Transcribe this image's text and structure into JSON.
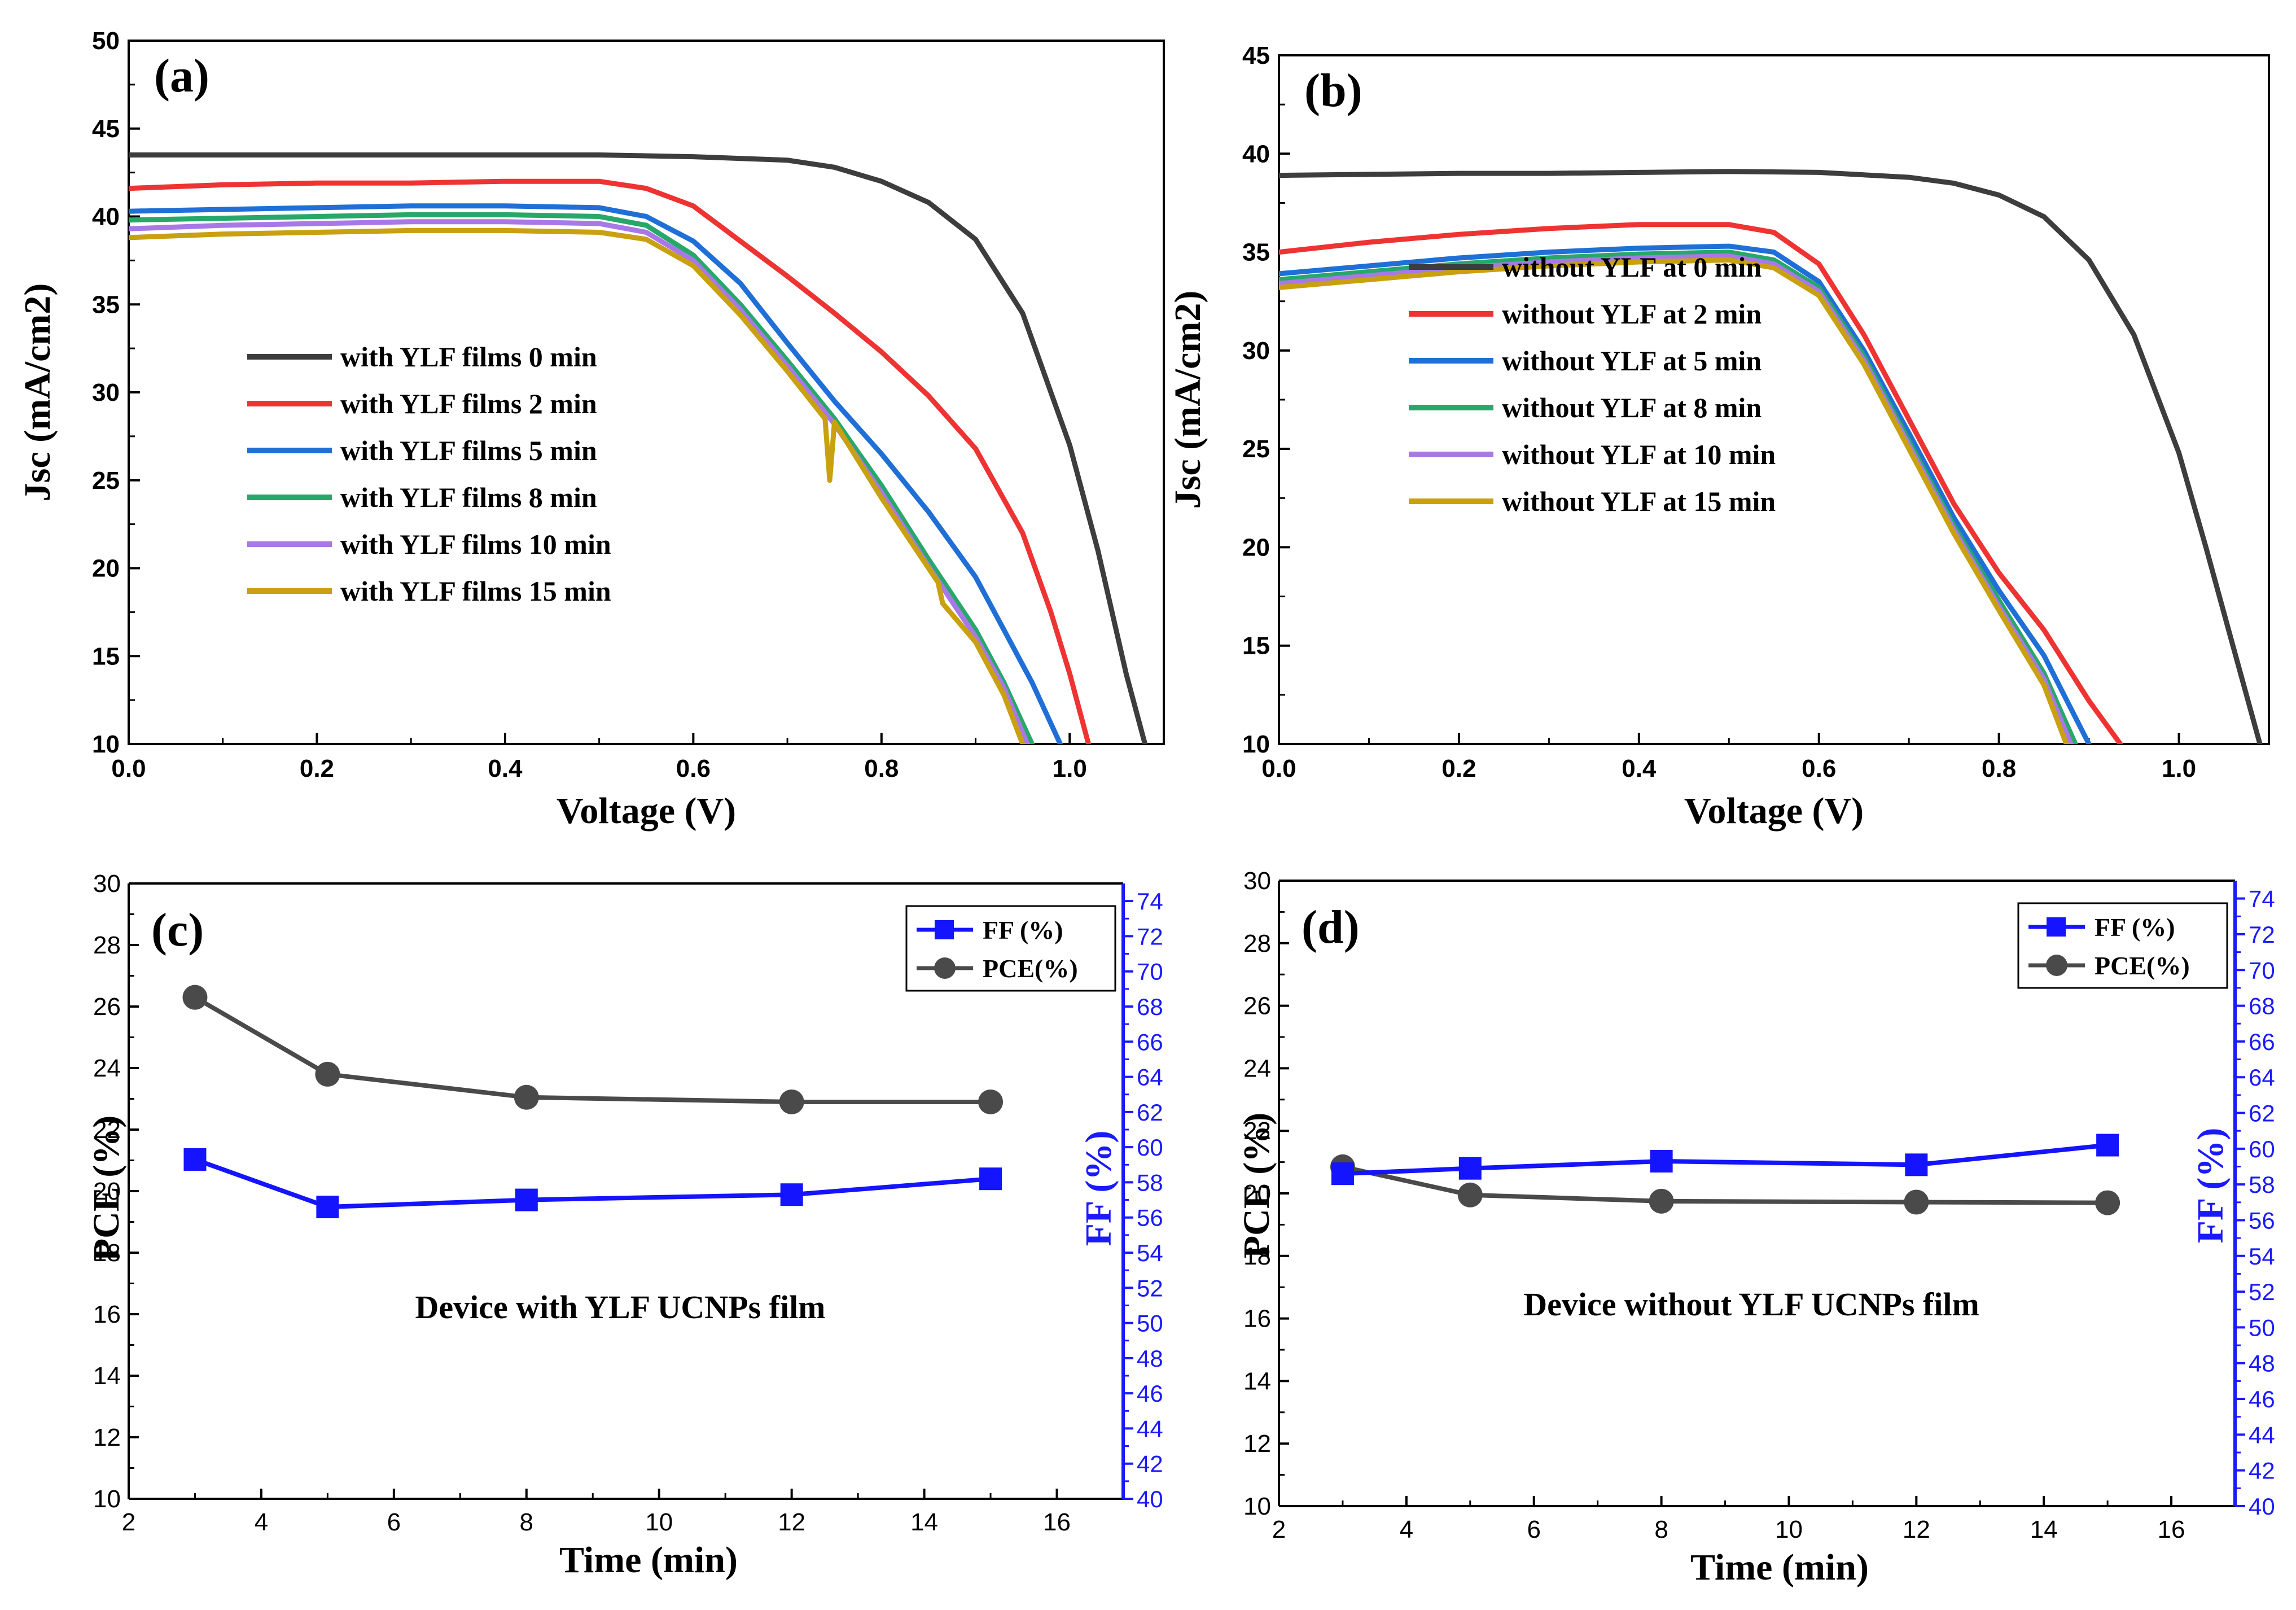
{
  "chart_data": [
    {
      "panel": "(a)",
      "type": "line",
      "title": "",
      "xlabel": "Voltage (V)",
      "ylabel": "Jsc (mA/cm2)",
      "xlim": [
        0.0,
        1.1
      ],
      "ylim": [
        10,
        50
      ],
      "xticks": [
        "0.0",
        "0.2",
        "0.4",
        "0.6",
        "0.8",
        "1.0"
      ],
      "yticks": [
        "10",
        "15",
        "20",
        "25",
        "30",
        "35",
        "40",
        "45",
        "50"
      ],
      "legend_position": "center-left",
      "series": [
        {
          "name": "with YLF films 0 min",
          "color": "#3d3d3d",
          "x": [
            0,
            0.1,
            0.2,
            0.3,
            0.4,
            0.5,
            0.6,
            0.7,
            0.75,
            0.8,
            0.85,
            0.9,
            0.95,
            1.0,
            1.03,
            1.06,
            1.08
          ],
          "y": [
            43.5,
            43.5,
            43.5,
            43.5,
            43.5,
            43.5,
            43.4,
            43.2,
            42.8,
            42.0,
            40.8,
            38.7,
            34.5,
            27.0,
            21.0,
            14.0,
            10.0
          ]
        },
        {
          "name": "with YLF films 2 min",
          "color": "#ee3333",
          "x": [
            0,
            0.1,
            0.2,
            0.3,
            0.4,
            0.5,
            0.55,
            0.6,
            0.65,
            0.7,
            0.75,
            0.8,
            0.85,
            0.9,
            0.95,
            0.98,
            1.0,
            1.02
          ],
          "y": [
            41.6,
            41.8,
            41.9,
            41.9,
            42.0,
            42.0,
            41.6,
            40.6,
            38.6,
            36.6,
            34.5,
            32.3,
            29.8,
            26.8,
            22.0,
            17.5,
            14.0,
            10.0
          ]
        },
        {
          "name": "with YLF films 5 min",
          "color": "#1f6fd6",
          "x": [
            0,
            0.1,
            0.2,
            0.3,
            0.4,
            0.5,
            0.55,
            0.6,
            0.65,
            0.7,
            0.75,
            0.8,
            0.85,
            0.9,
            0.93,
            0.96,
            0.99
          ],
          "y": [
            40.3,
            40.4,
            40.5,
            40.6,
            40.6,
            40.5,
            40.0,
            38.6,
            36.2,
            32.8,
            29.5,
            26.5,
            23.2,
            19.5,
            16.5,
            13.5,
            10.0
          ]
        },
        {
          "name": "with YLF films 8 min",
          "color": "#27a86a",
          "x": [
            0,
            0.1,
            0.2,
            0.3,
            0.4,
            0.5,
            0.55,
            0.6,
            0.65,
            0.7,
            0.75,
            0.8,
            0.85,
            0.9,
            0.93,
            0.96
          ],
          "y": [
            39.8,
            39.9,
            40.0,
            40.1,
            40.1,
            40.0,
            39.5,
            37.8,
            35.0,
            31.8,
            28.5,
            24.7,
            20.5,
            16.5,
            13.5,
            10.0
          ]
        },
        {
          "name": "with YLF films 10 min",
          "color": "#a879e6",
          "x": [
            0,
            0.1,
            0.2,
            0.3,
            0.4,
            0.5,
            0.55,
            0.6,
            0.65,
            0.7,
            0.75,
            0.8,
            0.85,
            0.9,
            0.93,
            0.955
          ],
          "y": [
            39.3,
            39.5,
            39.6,
            39.7,
            39.7,
            39.6,
            39.1,
            37.5,
            34.7,
            31.5,
            28.2,
            24.3,
            20.1,
            16.1,
            13.2,
            10.0
          ]
        },
        {
          "name": "with YLF films 15 min",
          "color": "#c9a010",
          "x": [
            0,
            0.1,
            0.2,
            0.3,
            0.4,
            0.5,
            0.55,
            0.6,
            0.65,
            0.7,
            0.74,
            0.745,
            0.75,
            0.8,
            0.85,
            0.86,
            0.865,
            0.9,
            0.93,
            0.95
          ],
          "y": [
            38.8,
            39.0,
            39.1,
            39.2,
            39.2,
            39.1,
            38.7,
            37.2,
            34.4,
            31.2,
            28.5,
            25.0,
            28.3,
            24.0,
            20.0,
            19.2,
            18.0,
            15.8,
            12.8,
            10.0
          ]
        }
      ]
    },
    {
      "panel": "(b)",
      "type": "line",
      "title": "",
      "xlabel": "Voltage (V)",
      "ylabel": "Jsc (mA/cm2)",
      "xlim": [
        0.0,
        1.1
      ],
      "ylim": [
        10,
        45
      ],
      "xticks": [
        "0.0",
        "0.2",
        "0.4",
        "0.6",
        "0.8",
        "1.0"
      ],
      "yticks": [
        "10",
        "15",
        "20",
        "25",
        "30",
        "35",
        "40",
        "45"
      ],
      "legend_position": "center-left",
      "series": [
        {
          "name": "without YLF at 0 min",
          "color": "#3d3d3d",
          "x": [
            0,
            0.1,
            0.2,
            0.3,
            0.4,
            0.5,
            0.6,
            0.7,
            0.75,
            0.8,
            0.85,
            0.9,
            0.95,
            1.0,
            1.03,
            1.06,
            1.09
          ],
          "y": [
            38.9,
            38.95,
            39.0,
            39.0,
            39.05,
            39.1,
            39.05,
            38.8,
            38.5,
            37.9,
            36.8,
            34.6,
            30.8,
            24.8,
            20.0,
            15.0,
            10.0
          ]
        },
        {
          "name": "without YLF at 2 min",
          "color": "#ee3333",
          "x": [
            0,
            0.1,
            0.2,
            0.3,
            0.4,
            0.5,
            0.55,
            0.6,
            0.65,
            0.7,
            0.75,
            0.8,
            0.85,
            0.9,
            0.935
          ],
          "y": [
            35.0,
            35.5,
            35.9,
            36.2,
            36.4,
            36.4,
            36.0,
            34.4,
            30.8,
            26.5,
            22.2,
            18.7,
            15.8,
            12.2,
            10.0
          ]
        },
        {
          "name": "without YLF at 5 min",
          "color": "#1f6fd6",
          "x": [
            0,
            0.1,
            0.2,
            0.3,
            0.4,
            0.5,
            0.55,
            0.6,
            0.65,
            0.7,
            0.75,
            0.8,
            0.85,
            0.9
          ],
          "y": [
            33.9,
            34.3,
            34.7,
            35.0,
            35.2,
            35.3,
            35.0,
            33.5,
            30.0,
            25.8,
            21.5,
            17.8,
            14.5,
            10.0
          ]
        },
        {
          "name": "without YLF at 8 min",
          "color": "#27a86a",
          "x": [
            0,
            0.1,
            0.2,
            0.3,
            0.4,
            0.5,
            0.55,
            0.6,
            0.65,
            0.7,
            0.75,
            0.8,
            0.85,
            0.885
          ],
          "y": [
            33.6,
            34.0,
            34.4,
            34.7,
            34.9,
            35.0,
            34.6,
            33.2,
            29.7,
            25.4,
            21.1,
            17.3,
            13.6,
            10.0
          ]
        },
        {
          "name": "without YLF at 10 min",
          "color": "#a879e6",
          "x": [
            0,
            0.1,
            0.2,
            0.3,
            0.4,
            0.5,
            0.55,
            0.6,
            0.65,
            0.7,
            0.75,
            0.8,
            0.85,
            0.88
          ],
          "y": [
            33.4,
            33.8,
            34.2,
            34.5,
            34.7,
            34.8,
            34.4,
            33.0,
            29.5,
            25.2,
            20.9,
            17.0,
            13.3,
            10.0
          ]
        },
        {
          "name": "without YLF at 15 min",
          "color": "#c9a010",
          "x": [
            0,
            0.1,
            0.2,
            0.3,
            0.4,
            0.5,
            0.55,
            0.6,
            0.65,
            0.7,
            0.75,
            0.8,
            0.85,
            0.875
          ],
          "y": [
            33.2,
            33.6,
            34.0,
            34.3,
            34.5,
            34.6,
            34.2,
            32.8,
            29.3,
            25.0,
            20.7,
            16.8,
            13.0,
            10.0
          ]
        }
      ]
    },
    {
      "panel": "(c)",
      "type": "line",
      "title": "",
      "annotation": "Device with YLF UCNPs film",
      "xlabel": "Time (min)",
      "ylabel": "PCE (%)",
      "y2label": "FF (%)",
      "xlim": [
        2,
        17
      ],
      "ylim": [
        10,
        30
      ],
      "y2lim": [
        40,
        75
      ],
      "xticks": [
        "2",
        "4",
        "6",
        "8",
        "10",
        "12",
        "14",
        "16"
      ],
      "yticks": [
        "10",
        "12",
        "14",
        "16",
        "18",
        "20",
        "22",
        "24",
        "26",
        "28",
        "30"
      ],
      "y2ticks": [
        "40",
        "42",
        "44",
        "46",
        "48",
        "50",
        "52",
        "54",
        "56",
        "58",
        "60",
        "62",
        "64",
        "66",
        "68",
        "70",
        "72",
        "74"
      ],
      "legend_position": "top-right",
      "series": [
        {
          "name": "FF (%)",
          "axis": "right",
          "color": "#1414ff",
          "marker": "square",
          "x": [
            3,
            5,
            8,
            12,
            15
          ],
          "values": [
            59.3,
            56.6,
            57.0,
            57.3,
            58.2
          ]
        },
        {
          "name": "PCE(%)",
          "axis": "left",
          "color": "#4a4a4a",
          "marker": "circle",
          "x": [
            3,
            5,
            8,
            12,
            15
          ],
          "values": [
            26.3,
            23.8,
            23.05,
            22.9,
            22.9
          ]
        }
      ]
    },
    {
      "panel": "(d)",
      "type": "line",
      "title": "",
      "annotation": "Device without YLF UCNPs film",
      "xlabel": "Time (min)",
      "ylabel": "PCE (%)",
      "y2label": "FF (%)",
      "xlim": [
        2,
        17
      ],
      "ylim": [
        10,
        30
      ],
      "y2lim": [
        40,
        75
      ],
      "xticks": [
        "2",
        "4",
        "6",
        "8",
        "10",
        "12",
        "14",
        "16"
      ],
      "yticks": [
        "10",
        "12",
        "14",
        "16",
        "18",
        "20",
        "22",
        "24",
        "26",
        "28",
        "30"
      ],
      "y2ticks": [
        "40",
        "42",
        "44",
        "46",
        "48",
        "50",
        "52",
        "54",
        "56",
        "58",
        "60",
        "62",
        "64",
        "66",
        "68",
        "70",
        "72",
        "74"
      ],
      "legend_position": "top-right",
      "series": [
        {
          "name": "FF (%)",
          "axis": "right",
          "color": "#1414ff",
          "marker": "square",
          "x": [
            3,
            5,
            8,
            12,
            15
          ],
          "values": [
            58.6,
            58.9,
            59.3,
            59.1,
            60.2
          ]
        },
        {
          "name": "PCE(%)",
          "axis": "left",
          "color": "#4a4a4a",
          "marker": "circle",
          "x": [
            3,
            5,
            8,
            12,
            15
          ],
          "values": [
            20.85,
            19.95,
            19.75,
            19.72,
            19.7
          ]
        }
      ]
    }
  ]
}
